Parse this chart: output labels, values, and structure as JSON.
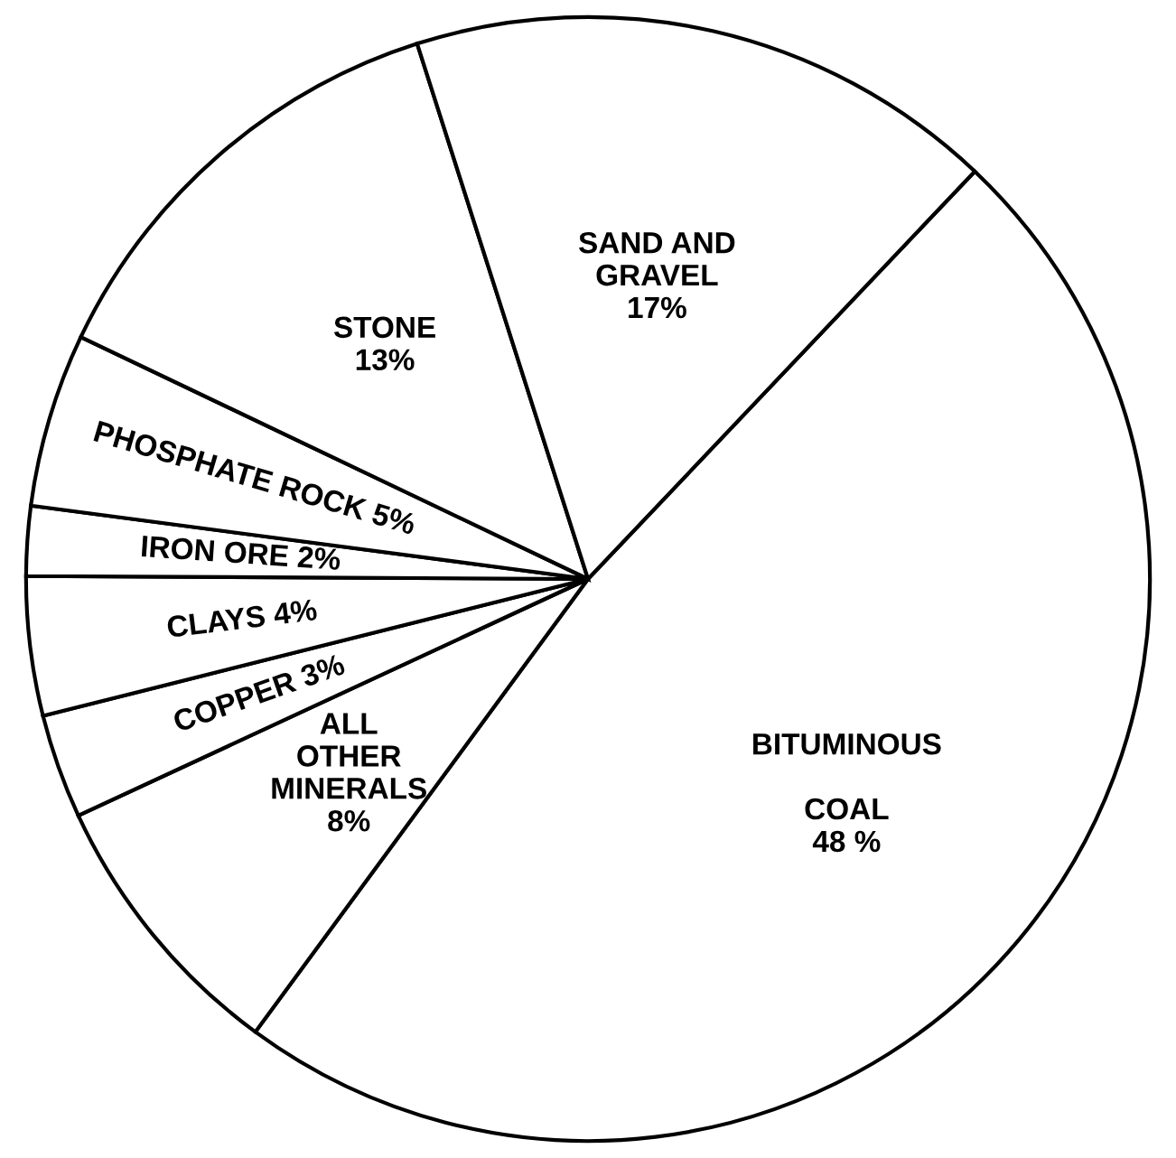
{
  "chart_data": {
    "type": "pie",
    "categories": [
      "BITUMINOUS\n\nCOAL",
      "ALL\nOTHER\nMINERALS",
      "COPPER",
      "CLAYS",
      "IRON ORE",
      "PHOSPHATE ROCK",
      "STONE",
      "SAND AND\nGRAVEL"
    ],
    "values": [
      48,
      8,
      3,
      4,
      2,
      5,
      13,
      17
    ],
    "value_labels": [
      "48 %",
      "8%",
      "3%",
      "4%",
      "2%",
      "5%",
      "13%",
      "17%"
    ],
    "colors": [
      "#ffffff",
      "#ffffff",
      "#ffffff",
      "#ffffff",
      "#ffffff",
      "#ffffff",
      "#ffffff",
      "#ffffff"
    ]
  }
}
